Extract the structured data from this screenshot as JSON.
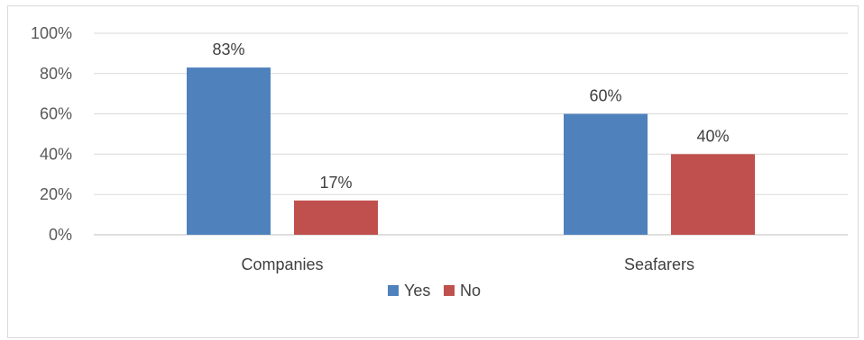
{
  "chart_data": {
    "type": "bar",
    "categories": [
      "Companies",
      "Seafarers"
    ],
    "series": [
      {
        "name": "Yes",
        "values": [
          83,
          60
        ],
        "color": "#4f81bd"
      },
      {
        "name": "No",
        "values": [
          17,
          40
        ],
        "color": "#c0504d"
      }
    ],
    "ylim": [
      0,
      100
    ],
    "yticks": [
      "0%",
      "20%",
      "40%",
      "60%",
      "80%",
      "100%"
    ],
    "data_labels": [
      [
        "83%",
        "60%"
      ],
      [
        "17%",
        "40%"
      ]
    ],
    "grid": true,
    "legend_position": "bottom",
    "title": "",
    "xlabel": "",
    "ylabel": ""
  }
}
